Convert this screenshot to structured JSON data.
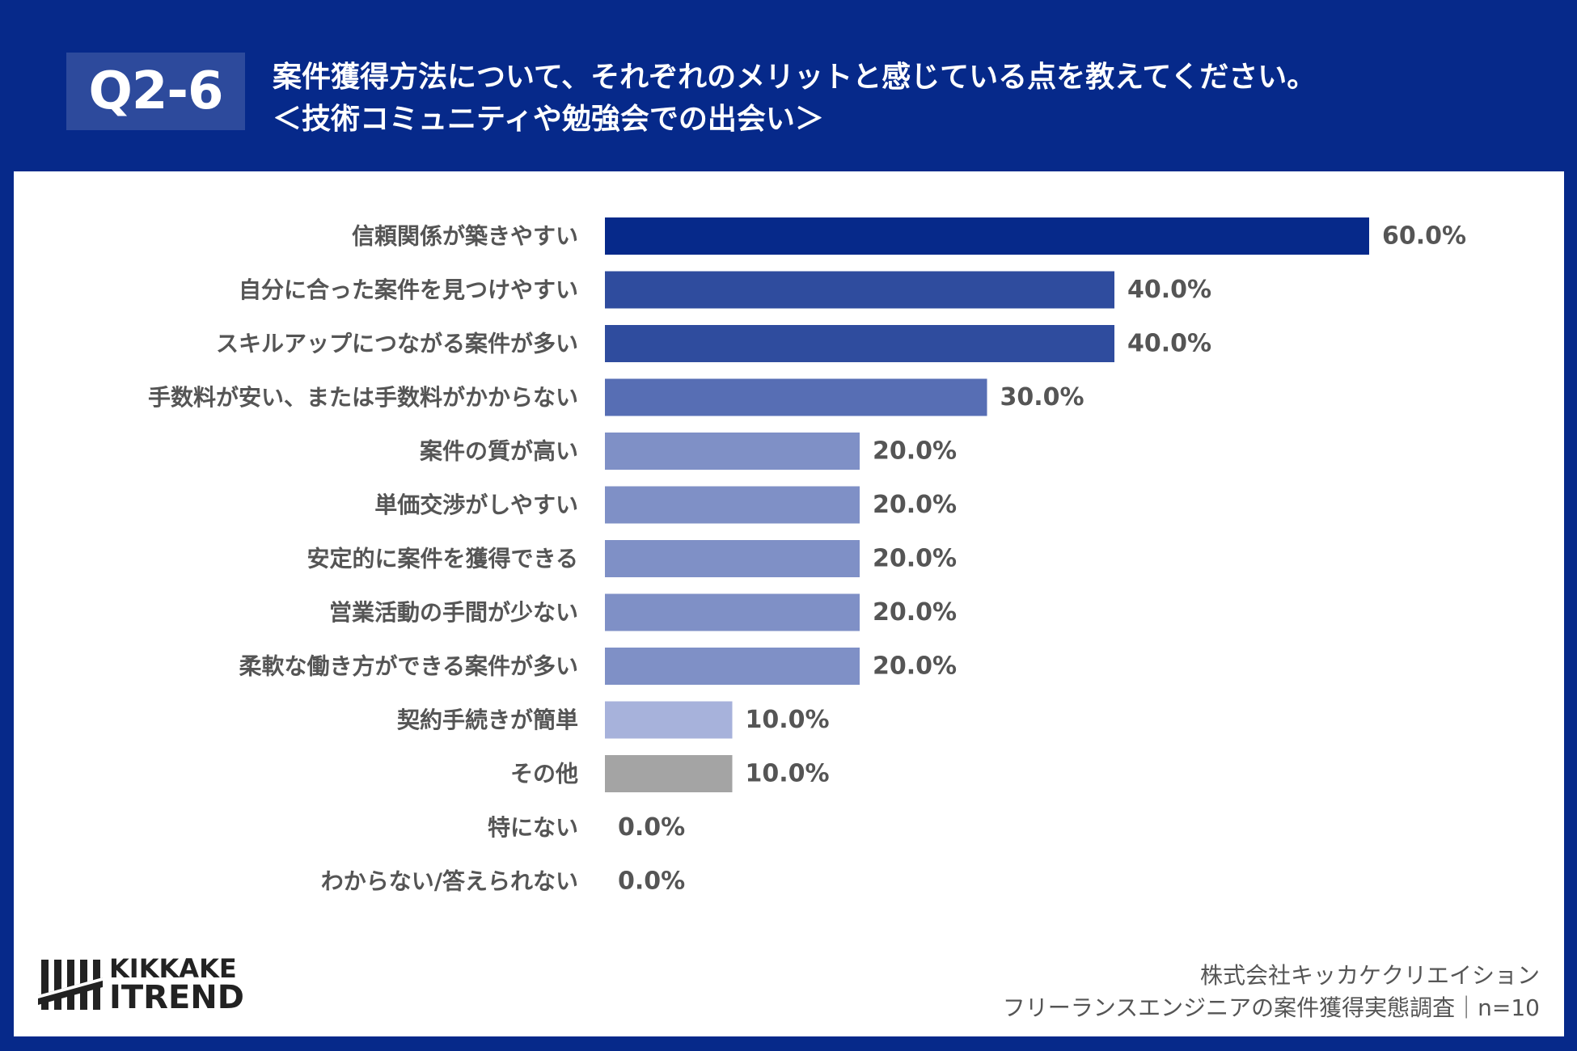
{
  "header": {
    "question_id": "Q2-6",
    "title_line1": "案件獲得方法について、それぞれのメリットと感じている点を教えてください。",
    "title_line2": "＜技術コミュニティや勉強会での出会い＞"
  },
  "colors": {
    "background": "#06298a",
    "panel": "#ffffff",
    "text_gray": "#555555"
  },
  "chart_data": {
    "type": "bar",
    "orientation": "horizontal",
    "categories": [
      "信頼関係が築きやすい",
      "自分に合った案件を見つけやすい",
      "スキルアップにつながる案件が多い",
      "手数料が安い、または手数料がかからない",
      "案件の質が高い",
      "単価交渉がしやすい",
      "安定的に案件を獲得できる",
      "営業活動の手間が少ない",
      "柔軟な働き方ができる案件が多い",
      "契約手続きが簡単",
      "その他",
      "特にない",
      "わからない/答えられない"
    ],
    "values": [
      60.0,
      40.0,
      40.0,
      30.0,
      20.0,
      20.0,
      20.0,
      20.0,
      20.0,
      10.0,
      10.0,
      0.0,
      0.0
    ],
    "value_labels": [
      "60.0%",
      "40.0%",
      "40.0%",
      "30.0%",
      "20.0%",
      "20.0%",
      "20.0%",
      "20.0%",
      "20.0%",
      "10.0%",
      "10.0%",
      "0.0%",
      "0.0%"
    ],
    "bar_colors": [
      "#06298a",
      "#2f4c9e",
      "#2f4c9e",
      "#576eb4",
      "#7f90c6",
      "#7f90c6",
      "#7f90c6",
      "#7f90c6",
      "#7f90c6",
      "#a7b2db",
      "#a4a4a4",
      "#a4a4a4",
      "#a4a4a4"
    ],
    "unit": "%",
    "xlim": [
      0,
      60
    ],
    "grid": false,
    "legend": false
  },
  "footer": {
    "logo_line1": "KIKKAKE",
    "logo_line2": "ITREND",
    "source_line1": "株式会社キッカケクリエイション",
    "source_line2": "フリーランスエンジニアの案件獲得実態調査｜n=10"
  }
}
